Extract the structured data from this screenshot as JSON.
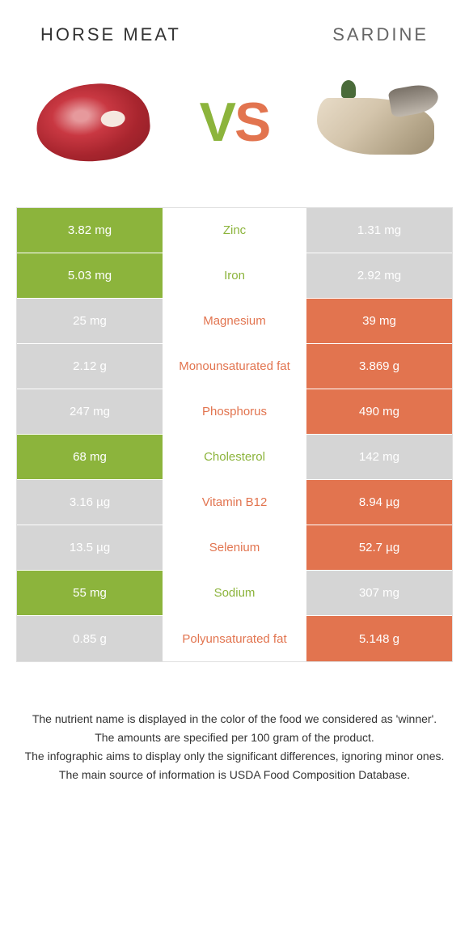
{
  "colors": {
    "left_food": "#8cb43c",
    "right_food": "#e2744f",
    "gray_bg": "#d5d5d5",
    "vs_v": "#8cb43c",
    "vs_s": "#e2744f"
  },
  "header": {
    "left_title": "Horse meat",
    "right_title": "Sardine"
  },
  "vs": {
    "v": "V",
    "s": "S"
  },
  "rows": [
    {
      "left": "3.82 mg",
      "label": "Zinc",
      "right": "1.31 mg",
      "winner": "left"
    },
    {
      "left": "5.03 mg",
      "label": "Iron",
      "right": "2.92 mg",
      "winner": "left"
    },
    {
      "left": "25 mg",
      "label": "Magnesium",
      "right": "39 mg",
      "winner": "right"
    },
    {
      "left": "2.12 g",
      "label": "Monounsaturated fat",
      "right": "3.869 g",
      "winner": "right"
    },
    {
      "left": "247 mg",
      "label": "Phosphorus",
      "right": "490 mg",
      "winner": "right"
    },
    {
      "left": "68 mg",
      "label": "Cholesterol",
      "right": "142 mg",
      "winner": "left"
    },
    {
      "left": "3.16 µg",
      "label": "Vitamin B12",
      "right": "8.94 µg",
      "winner": "right"
    },
    {
      "left": "13.5 µg",
      "label": "Selenium",
      "right": "52.7 µg",
      "winner": "right"
    },
    {
      "left": "55 mg",
      "label": "Sodium",
      "right": "307 mg",
      "winner": "left"
    },
    {
      "left": "0.85 g",
      "label": "Polyunsaturated fat",
      "right": "5.148 g",
      "winner": "right"
    }
  ],
  "footer": {
    "line1": "The nutrient name is displayed in the color of the food we considered as 'winner'.",
    "line2": "The amounts are specified per 100 gram of the product.",
    "line3": "The infographic aims to display only the significant differences, ignoring minor ones.",
    "line4": "The main source of information is USDA Food Composition Database."
  }
}
